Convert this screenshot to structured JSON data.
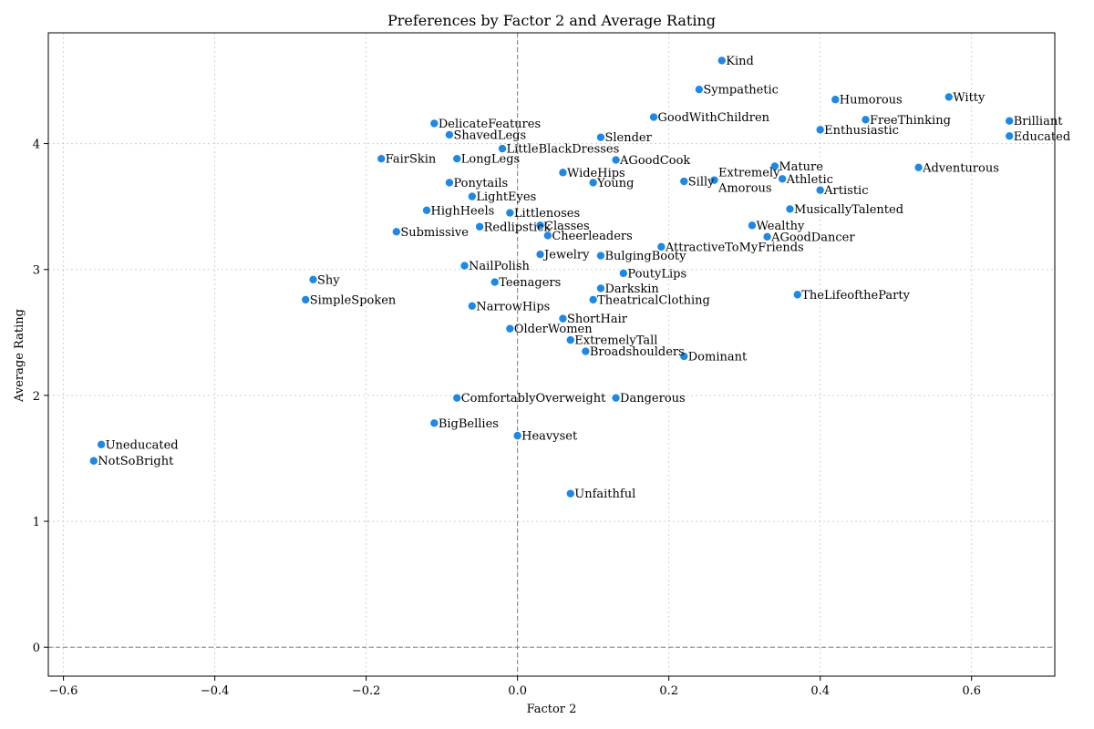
{
  "chart_data": {
    "type": "scatter",
    "title": "Preferences by Factor 2 and Average Rating",
    "xlabel": "Factor 2",
    "ylabel": "Average Rating",
    "xlim": [
      -0.62,
      0.71
    ],
    "ylim": [
      -0.23,
      4.88
    ],
    "xticks": [
      -0.6,
      -0.4,
      -0.2,
      0.0,
      0.2,
      0.4,
      0.6
    ],
    "xtick_labels": [
      "−0.6",
      "−0.4",
      "−0.2",
      "0.0",
      "0.2",
      "0.4",
      "0.6"
    ],
    "yticks": [
      0,
      1,
      2,
      3,
      4
    ],
    "ytick_labels": [
      "0",
      "1",
      "2",
      "3",
      "4"
    ],
    "grid": true,
    "marker_color": "#1e88e5",
    "points": [
      {
        "label": "Kind",
        "x": 0.27,
        "y": 4.66
      },
      {
        "label": "Sympathetic",
        "x": 0.24,
        "y": 4.43
      },
      {
        "label": "Humorous",
        "x": 0.42,
        "y": 4.35
      },
      {
        "label": "Witty",
        "x": 0.57,
        "y": 4.37
      },
      {
        "label": "GoodWithChildren",
        "x": 0.18,
        "y": 4.21
      },
      {
        "label": "FreeThinking",
        "x": 0.46,
        "y": 4.19
      },
      {
        "label": "Brilliant",
        "x": 0.65,
        "y": 4.18
      },
      {
        "label": "DelicateFeatures",
        "x": -0.11,
        "y": 4.16
      },
      {
        "label": "Enthusiastic",
        "x": 0.4,
        "y": 4.11
      },
      {
        "label": "ShavedLegs",
        "x": -0.09,
        "y": 4.07
      },
      {
        "label": "Slender",
        "x": 0.11,
        "y": 4.05
      },
      {
        "label": "Educated",
        "x": 0.65,
        "y": 4.06
      },
      {
        "label": "LittleBlackDresses",
        "x": -0.02,
        "y": 3.96
      },
      {
        "label": "FairSkin",
        "x": -0.18,
        "y": 3.88
      },
      {
        "label": "LongLegs",
        "x": -0.08,
        "y": 3.88
      },
      {
        "label": "AGoodCook",
        "x": 0.13,
        "y": 3.87
      },
      {
        "label": "Mature",
        "x": 0.34,
        "y": 3.82
      },
      {
        "label": "Adventurous",
        "x": 0.53,
        "y": 3.81
      },
      {
        "label": "WideHips",
        "x": 0.06,
        "y": 3.77
      },
      {
        "label": "Athletic",
        "x": 0.35,
        "y": 3.72
      },
      {
        "label": "Extremely",
        "x": 0.26,
        "y": 3.71,
        "label2": "Amorous"
      },
      {
        "label": "Silly",
        "x": 0.22,
        "y": 3.7
      },
      {
        "label": "Ponytails",
        "x": -0.09,
        "y": 3.69
      },
      {
        "label": "Young",
        "x": 0.1,
        "y": 3.69
      },
      {
        "label": "Artistic",
        "x": 0.4,
        "y": 3.63
      },
      {
        "label": "LightEyes",
        "x": -0.06,
        "y": 3.58
      },
      {
        "label": "MusicallyTalented",
        "x": 0.36,
        "y": 3.48
      },
      {
        "label": "HighHeels",
        "x": -0.12,
        "y": 3.47
      },
      {
        "label": "Littlenoses",
        "x": -0.01,
        "y": 3.45
      },
      {
        "label": "Classes",
        "x": 0.03,
        "y": 3.35
      },
      {
        "label": "Wealthy",
        "x": 0.31,
        "y": 3.35
      },
      {
        "label": "Redlipstick",
        "x": -0.05,
        "y": 3.34
      },
      {
        "label": "Submissive",
        "x": -0.16,
        "y": 3.3
      },
      {
        "label": "Cheerleaders",
        "x": 0.04,
        "y": 3.27
      },
      {
        "label": "AGoodDancer",
        "x": 0.33,
        "y": 3.26
      },
      {
        "label": "AttractiveToMyFriends",
        "x": 0.19,
        "y": 3.18
      },
      {
        "label": "Jewelry",
        "x": 0.03,
        "y": 3.12
      },
      {
        "label": "BulgingBooty",
        "x": 0.11,
        "y": 3.11
      },
      {
        "label": "NailPolish",
        "x": -0.07,
        "y": 3.03
      },
      {
        "label": "PoutyLips",
        "x": 0.14,
        "y": 2.97
      },
      {
        "label": "Shy",
        "x": -0.27,
        "y": 2.92
      },
      {
        "label": "Teenagers",
        "x": -0.03,
        "y": 2.9
      },
      {
        "label": "Darkskin",
        "x": 0.11,
        "y": 2.85
      },
      {
        "label": "TheLifeoftheParty",
        "x": 0.37,
        "y": 2.8
      },
      {
        "label": "SimpleSpoken",
        "x": -0.28,
        "y": 2.76
      },
      {
        "label": "TheatricalClothing",
        "x": 0.1,
        "y": 2.76
      },
      {
        "label": "NarrowHips",
        "x": -0.06,
        "y": 2.71
      },
      {
        "label": "ShortHair",
        "x": 0.06,
        "y": 2.61
      },
      {
        "label": "OlderWomen",
        "x": -0.01,
        "y": 2.53
      },
      {
        "label": "ExtremelyTall",
        "x": 0.07,
        "y": 2.44
      },
      {
        "label": "Broadshoulders",
        "x": 0.09,
        "y": 2.35
      },
      {
        "label": "Dominant",
        "x": 0.22,
        "y": 2.31
      },
      {
        "label": "ComfortablyOverweight",
        "x": -0.08,
        "y": 1.98
      },
      {
        "label": "Dangerous",
        "x": 0.13,
        "y": 1.98
      },
      {
        "label": "BigBellies",
        "x": -0.11,
        "y": 1.78
      },
      {
        "label": "Heavyset",
        "x": 0.0,
        "y": 1.68
      },
      {
        "label": "Uneducated",
        "x": -0.55,
        "y": 1.61
      },
      {
        "label": "NotSoBright",
        "x": -0.56,
        "y": 1.48
      },
      {
        "label": "Unfaithful",
        "x": 0.07,
        "y": 1.22
      }
    ]
  }
}
